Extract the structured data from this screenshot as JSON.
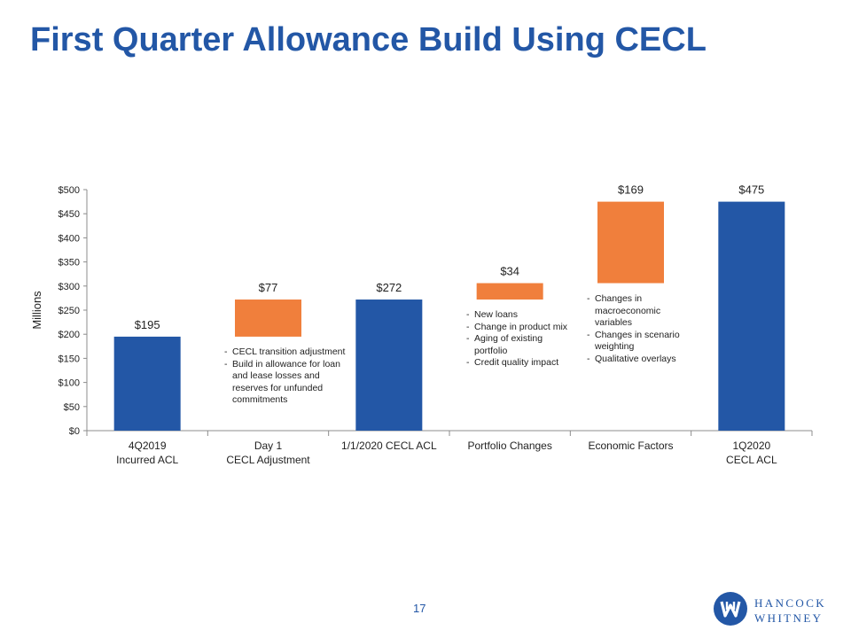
{
  "slide": {
    "title": "First Quarter Allowance Build Using CECL",
    "page_number": "17",
    "logo": {
      "line1": "HANCOCK",
      "line2": "WHITNEY"
    }
  },
  "colors": {
    "total": "#2357a6",
    "delta": "#f07f3c",
    "title": "#2357a6"
  },
  "chart_data": {
    "type": "bar",
    "subtype": "waterfall",
    "ylabel": "Millions",
    "ylim": [
      0,
      500
    ],
    "yticks": [
      0,
      50,
      100,
      150,
      200,
      250,
      300,
      350,
      400,
      450,
      500
    ],
    "ytick_labels": [
      "$0",
      "$50",
      "$100",
      "$150",
      "$200",
      "$250",
      "$300",
      "$350",
      "$400",
      "$450",
      "$500"
    ],
    "grid": false,
    "legend": "none",
    "bars": [
      {
        "category": [
          "4Q2019",
          "Incurred ACL"
        ],
        "kind": "total",
        "start": 0,
        "end": 195,
        "label": "$195"
      },
      {
        "category": [
          "Day 1",
          "CECL Adjustment"
        ],
        "kind": "delta",
        "start": 195,
        "end": 272,
        "label": "$77",
        "notes": [
          [
            "CECL transition adjustment"
          ],
          [
            "Build in allowance for loan",
            "and lease losses and",
            "reserves for unfunded",
            "commitments"
          ]
        ]
      },
      {
        "category": [
          "1/1/2020 CECL ACL"
        ],
        "kind": "total",
        "start": 0,
        "end": 272,
        "label": "$272"
      },
      {
        "category": [
          "Portfolio Changes"
        ],
        "kind": "delta",
        "start": 272,
        "end": 306,
        "label": "$34",
        "notes": [
          [
            "New loans"
          ],
          [
            "Change in product mix"
          ],
          [
            "Aging of existing",
            "portfolio"
          ],
          [
            "Credit quality impact"
          ]
        ]
      },
      {
        "category": [
          "Economic Factors"
        ],
        "kind": "delta",
        "start": 306,
        "end": 475,
        "label": "$169",
        "notes": [
          [
            "Changes in",
            "macroeconomic",
            "variables"
          ],
          [
            "Changes in scenario",
            "weighting"
          ],
          [
            "Qualitative overlays"
          ]
        ]
      },
      {
        "category": [
          "1Q2020",
          "CECL ACL"
        ],
        "kind": "total",
        "start": 0,
        "end": 475,
        "label": "$475"
      }
    ]
  }
}
